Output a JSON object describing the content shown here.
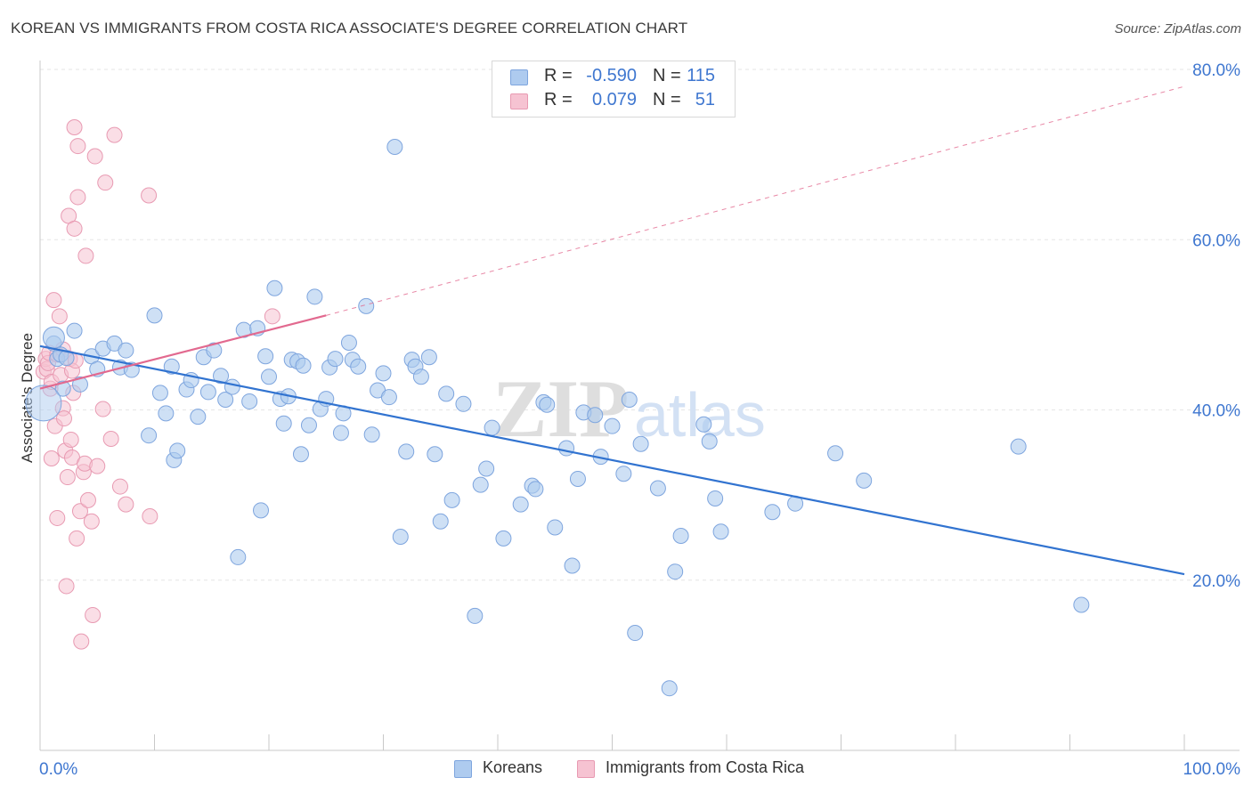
{
  "title": "KOREAN VS IMMIGRANTS FROM COSTA RICA ASSOCIATE'S DEGREE CORRELATION CHART",
  "source": "Source: ZipAtlas.com",
  "watermark": {
    "zip": "ZIP",
    "atlas": "atlas"
  },
  "legend": {
    "rows": [
      {
        "r_label": "R =",
        "r_value": "-0.590",
        "n_label": "N =",
        "n_value": "115",
        "color": "#aecbef"
      },
      {
        "r_label": "R =",
        "r_value": "0.079",
        "n_label": "N =",
        "n_value": "51",
        "color": "#f6b9cb"
      }
    ]
  },
  "bottom_legend": {
    "koreans": "Koreans",
    "costa_rica": "Immigrants from Costa Rica"
  },
  "chart_data": {
    "type": "scatter",
    "title": "KOREAN VS IMMIGRANTS FROM COSTA RICA ASSOCIATE'S DEGREE CORRELATION CHART",
    "xlabel": "",
    "ylabel": "Associate's Degree",
    "xlim": [
      0,
      100
    ],
    "ylim": [
      0,
      80
    ],
    "x_tick_labels": [
      "0.0%",
      "100.0%"
    ],
    "y_tick_labels": [
      "20.0%",
      "40.0%",
      "60.0%",
      "80.0%"
    ],
    "y_ticks": [
      20,
      40,
      60,
      80
    ],
    "grid": true,
    "legend_position": "top-center",
    "colors": {
      "koreans_fill": "#aecbef",
      "koreans_stroke": "#7ea5de",
      "koreans_line": "#3173d0",
      "costa_fill": "#f6c3d2",
      "costa_stroke": "#e89ab2",
      "costa_line": "#e2698f"
    },
    "series": [
      {
        "name": "Koreans",
        "trend": {
          "x": [
            0,
            100
          ],
          "y": [
            47.5,
            20.7
          ]
        },
        "points": [
          [
            1.2,
            47.8
          ],
          [
            1.5,
            46.0
          ],
          [
            1.8,
            46.5
          ],
          [
            2.0,
            42.5
          ],
          [
            2.3,
            46.1
          ],
          [
            3.0,
            49.3
          ],
          [
            3.5,
            43.0
          ],
          [
            4.5,
            46.3
          ],
          [
            5.0,
            44.8
          ],
          [
            5.5,
            47.2
          ],
          [
            6.5,
            47.8
          ],
          [
            7.0,
            45.0
          ],
          [
            7.5,
            47.0
          ],
          [
            8.0,
            44.7
          ],
          [
            9.5,
            37.0
          ],
          [
            10.0,
            51.1
          ],
          [
            10.5,
            42.0
          ],
          [
            11.0,
            39.6
          ],
          [
            11.5,
            45.1
          ],
          [
            11.7,
            34.1
          ],
          [
            12.0,
            35.2
          ],
          [
            12.8,
            42.4
          ],
          [
            13.2,
            43.5
          ],
          [
            13.8,
            39.2
          ],
          [
            14.3,
            46.2
          ],
          [
            14.7,
            42.1
          ],
          [
            15.2,
            47.0
          ],
          [
            15.8,
            44.0
          ],
          [
            16.2,
            41.2
          ],
          [
            16.8,
            42.7
          ],
          [
            17.3,
            22.7
          ],
          [
            17.8,
            49.4
          ],
          [
            18.3,
            41.0
          ],
          [
            19.0,
            49.6
          ],
          [
            19.3,
            28.2
          ],
          [
            19.7,
            46.3
          ],
          [
            20.0,
            43.9
          ],
          [
            20.5,
            54.3
          ],
          [
            21.0,
            41.3
          ],
          [
            21.3,
            38.4
          ],
          [
            21.7,
            41.6
          ],
          [
            22.0,
            45.9
          ],
          [
            22.5,
            45.7
          ],
          [
            22.8,
            34.8
          ],
          [
            23.0,
            45.2
          ],
          [
            23.5,
            38.2
          ],
          [
            24.0,
            53.3
          ],
          [
            24.5,
            40.1
          ],
          [
            25.0,
            41.3
          ],
          [
            25.3,
            45.0
          ],
          [
            25.8,
            46.0
          ],
          [
            26.3,
            37.3
          ],
          [
            26.5,
            39.6
          ],
          [
            27.0,
            47.9
          ],
          [
            27.3,
            45.9
          ],
          [
            27.8,
            45.1
          ],
          [
            28.5,
            52.2
          ],
          [
            29.0,
            37.1
          ],
          [
            29.5,
            42.3
          ],
          [
            30.0,
            44.3
          ],
          [
            30.5,
            41.5
          ],
          [
            31.0,
            70.9
          ],
          [
            31.5,
            25.1
          ],
          [
            32.0,
            35.1
          ],
          [
            32.5,
            45.9
          ],
          [
            32.8,
            45.1
          ],
          [
            33.3,
            43.9
          ],
          [
            34.0,
            46.2
          ],
          [
            34.5,
            34.8
          ],
          [
            35.0,
            26.9
          ],
          [
            35.5,
            41.9
          ],
          [
            36.0,
            29.4
          ],
          [
            37.0,
            40.7
          ],
          [
            38.0,
            15.8
          ],
          [
            38.5,
            31.2
          ],
          [
            39.0,
            33.1
          ],
          [
            39.5,
            37.9
          ],
          [
            40.5,
            24.9
          ],
          [
            42.0,
            28.9
          ],
          [
            43.0,
            31.1
          ],
          [
            43.3,
            30.7
          ],
          [
            44.0,
            40.9
          ],
          [
            44.3,
            40.6
          ],
          [
            45.0,
            26.2
          ],
          [
            46.0,
            35.5
          ],
          [
            46.5,
            21.7
          ],
          [
            47.0,
            31.9
          ],
          [
            47.5,
            39.7
          ],
          [
            48.5,
            39.4
          ],
          [
            49.0,
            34.5
          ],
          [
            50.0,
            38.1
          ],
          [
            51.0,
            32.5
          ],
          [
            51.5,
            41.2
          ],
          [
            52.0,
            13.8
          ],
          [
            52.5,
            36.0
          ],
          [
            54.0,
            30.8
          ],
          [
            55.0,
            7.3
          ],
          [
            55.5,
            21.0
          ],
          [
            56.0,
            25.2
          ],
          [
            58.0,
            38.3
          ],
          [
            58.5,
            36.3
          ],
          [
            59.0,
            29.6
          ],
          [
            59.5,
            25.7
          ],
          [
            64.0,
            28.0
          ],
          [
            66.0,
            29.0
          ],
          [
            69.5,
            34.9
          ],
          [
            72.0,
            31.7
          ],
          [
            85.5,
            35.7
          ],
          [
            91.0,
            17.1
          ]
        ]
      },
      {
        "name": "Immigrants from Costa Rica",
        "trend": {
          "x": [
            0,
            25.0
          ],
          "y": [
            42.5,
            51.1
          ]
        },
        "trend_extended": {
          "x": [
            25.0,
            100
          ],
          "y": [
            51.1,
            78.0
          ]
        },
        "points": [
          [
            0.3,
            44.5
          ],
          [
            0.5,
            46.0
          ],
          [
            0.6,
            44.8
          ],
          [
            0.7,
            45.5
          ],
          [
            0.8,
            46.7
          ],
          [
            0.9,
            42.5
          ],
          [
            1.0,
            43.3
          ],
          [
            1.0,
            34.3
          ],
          [
            1.2,
            52.9
          ],
          [
            1.3,
            38.1
          ],
          [
            1.5,
            46.5
          ],
          [
            1.5,
            27.3
          ],
          [
            1.7,
            51.0
          ],
          [
            1.8,
            44.1
          ],
          [
            2.0,
            47.1
          ],
          [
            2.0,
            40.2
          ],
          [
            2.1,
            39.0
          ],
          [
            2.2,
            35.2
          ],
          [
            2.3,
            19.3
          ],
          [
            2.4,
            32.1
          ],
          [
            2.5,
            62.8
          ],
          [
            2.6,
            46.0
          ],
          [
            2.7,
            36.5
          ],
          [
            2.8,
            44.6
          ],
          [
            2.8,
            34.4
          ],
          [
            2.9,
            42.0
          ],
          [
            3.0,
            73.2
          ],
          [
            3.0,
            61.3
          ],
          [
            3.1,
            45.8
          ],
          [
            3.2,
            24.9
          ],
          [
            3.3,
            71.0
          ],
          [
            3.3,
            65.0
          ],
          [
            3.5,
            28.1
          ],
          [
            3.6,
            12.8
          ],
          [
            3.8,
            32.7
          ],
          [
            3.9,
            33.7
          ],
          [
            4.0,
            58.1
          ],
          [
            4.2,
            29.4
          ],
          [
            4.5,
            26.9
          ],
          [
            4.6,
            15.9
          ],
          [
            4.8,
            69.8
          ],
          [
            5.0,
            33.4
          ],
          [
            5.5,
            40.1
          ],
          [
            5.7,
            66.7
          ],
          [
            6.2,
            36.6
          ],
          [
            6.5,
            72.3
          ],
          [
            7.0,
            31.0
          ],
          [
            7.5,
            28.9
          ],
          [
            9.5,
            65.2
          ],
          [
            9.6,
            27.5
          ],
          [
            20.3,
            51.0
          ]
        ]
      }
    ]
  }
}
